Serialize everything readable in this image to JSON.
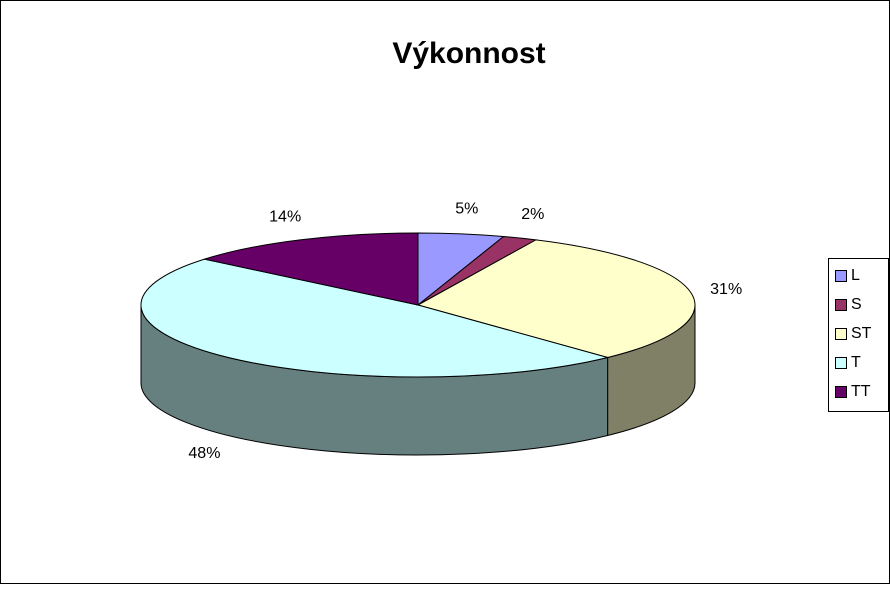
{
  "chart_data": {
    "type": "pie",
    "title": "Výkonnost",
    "categories": [
      "L",
      "S",
      "ST",
      "T",
      "TT"
    ],
    "values": [
      5,
      2,
      31,
      48,
      14
    ],
    "value_labels": [
      "5%",
      "2%",
      "31%",
      "48%",
      "14%"
    ],
    "colors": [
      "#9999ff",
      "#993366",
      "#ffffcc",
      "#ccffff",
      "#660066"
    ],
    "legend": "right"
  }
}
